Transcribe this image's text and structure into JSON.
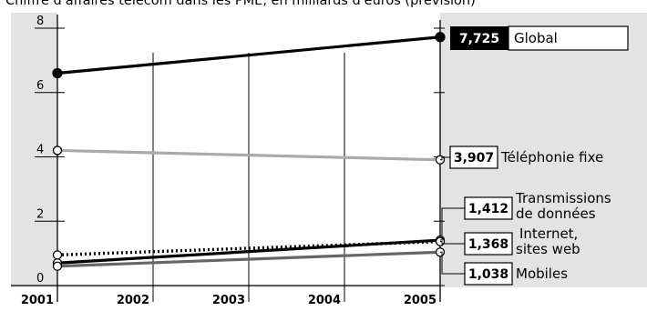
{
  "chart_data": {
    "type": "line",
    "title": "Chiffre d'affaires télécom dans les PME, en milliards d'euros (prévision)",
    "x": [
      2001,
      2005
    ],
    "x_ticks": [
      "2001",
      "2002",
      "2003",
      "2004",
      "2005"
    ],
    "y_ticks": [
      "0",
      "2",
      "4",
      "6",
      "8"
    ],
    "ylim": [
      0,
      8
    ],
    "xlim": [
      2001,
      2005
    ],
    "grid": false,
    "series": [
      {
        "name": "Global",
        "values": [
          6.6,
          7.725
        ],
        "value_label": "7,725",
        "style": "solid",
        "color": "#000000",
        "marker": "filled",
        "label_highlight": true
      },
      {
        "name": "Téléphonie fixe",
        "values": [
          4.2,
          3.907
        ],
        "value_label": "3,907",
        "style": "solid",
        "color": "#aaaaaa",
        "marker": "open"
      },
      {
        "name": "Transmissions de données",
        "values": [
          0.7,
          1.412
        ],
        "value_label": "1,412",
        "style": "solid",
        "color": "#000000",
        "marker": "open"
      },
      {
        "name": "Internet, sites web",
        "values": [
          0.95,
          1.368
        ],
        "value_label": "1,368",
        "style": "dotted",
        "color": "#000000",
        "marker": "open"
      },
      {
        "name": "Mobiles",
        "values": [
          0.6,
          1.038
        ],
        "value_label": "1,038",
        "style": "solid",
        "color": "#666666",
        "marker": "open"
      }
    ]
  }
}
